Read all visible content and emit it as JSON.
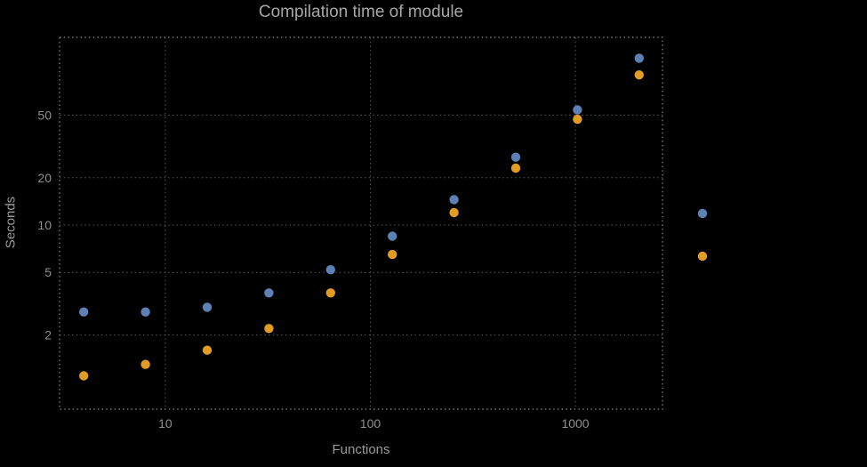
{
  "chart_data": {
    "type": "scatter",
    "title": "Compilation time of module",
    "xlabel": "Functions",
    "ylabel": "Seconds",
    "xscale": "log",
    "yscale": "log",
    "grid": true,
    "xlim": [
      3.05,
      2660
    ],
    "ylim": [
      0.675,
      156
    ],
    "xticks": [
      10,
      100,
      1000
    ],
    "yticks": [
      2,
      5,
      10,
      20,
      50
    ],
    "x": [
      4,
      8,
      16,
      32,
      64,
      128,
      256,
      512,
      1024,
      2048
    ],
    "series": [
      {
        "name": "blue",
        "color": "#5e81b5",
        "values": [
          2.8,
          2.8,
          3.0,
          3.7,
          5.2,
          8.5,
          14.5,
          27,
          54,
          115
        ]
      },
      {
        "name": "orange",
        "color": "#e19c24",
        "values": [
          1.1,
          1.3,
          1.6,
          2.2,
          3.7,
          6.5,
          12,
          23,
          47,
          90
        ]
      }
    ],
    "legend": {
      "position": "right-outside",
      "labels_visible": false
    }
  },
  "colors": {
    "background": "#000000",
    "text": "#9a9a9a",
    "grid": "#5a5a5a",
    "frame": "#8a8a8a"
  }
}
